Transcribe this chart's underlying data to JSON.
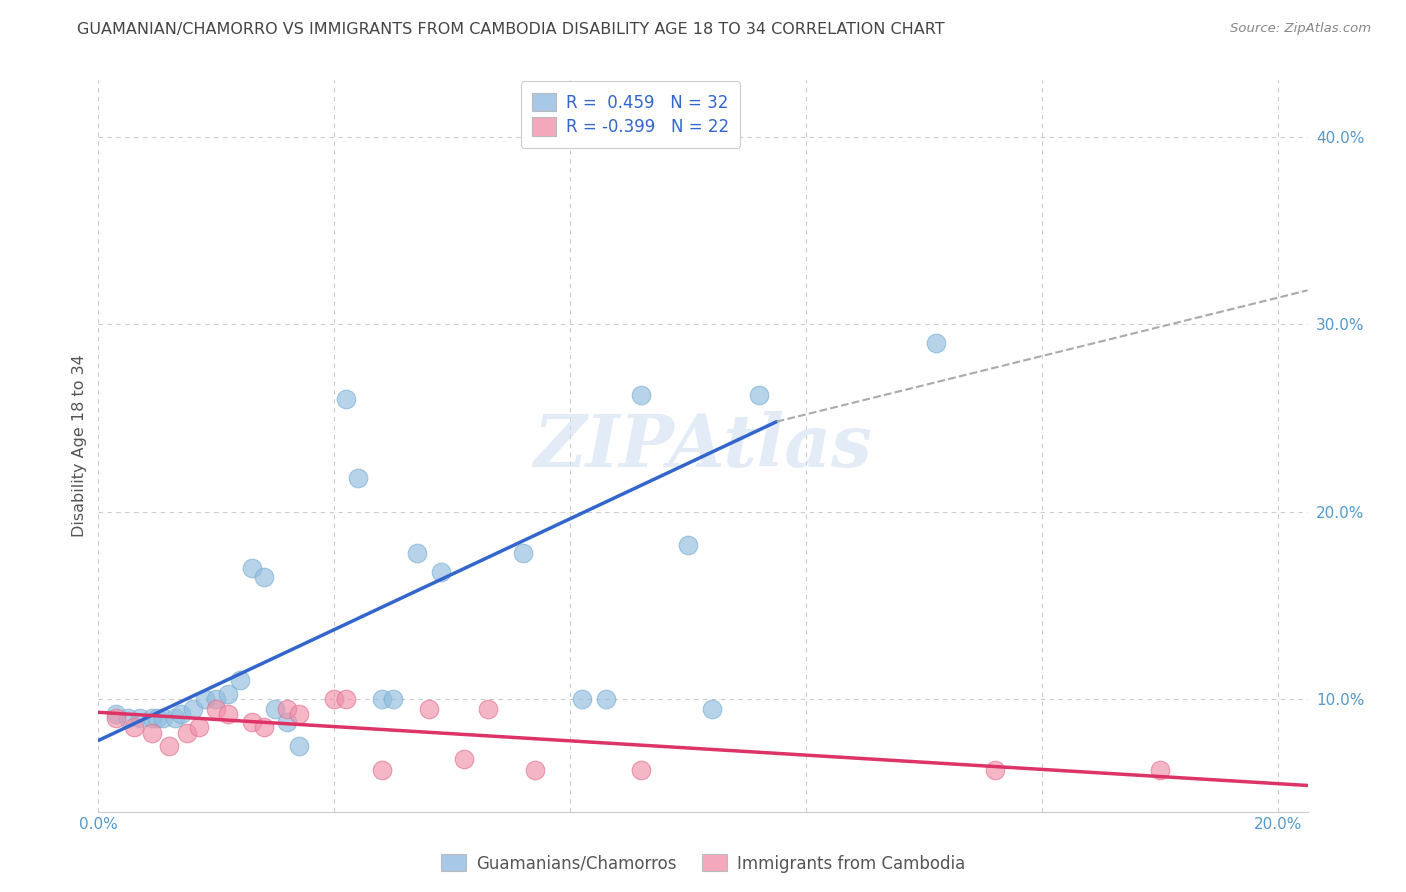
{
  "title": "GUAMANIAN/CHAMORRO VS IMMIGRANTS FROM CAMBODIA DISABILITY AGE 18 TO 34 CORRELATION CHART",
  "source": "Source: ZipAtlas.com",
  "ylabel": "Disability Age 18 to 34",
  "xlim": [
    0.0,
    0.205
  ],
  "ylim": [
    0.04,
    0.43
  ],
  "xticks": [
    0.0,
    0.04,
    0.08,
    0.12,
    0.16,
    0.2
  ],
  "xticklabels": [
    "0.0%",
    "",
    "",
    "",
    "",
    "20.0%"
  ],
  "yticks_right": [
    0.1,
    0.2,
    0.3,
    0.4
  ],
  "yticklabels_right": [
    "10.0%",
    "20.0%",
    "30.0%",
    "40.0%"
  ],
  "legend_top": [
    {
      "label": "R =  0.459   N = 32",
      "color": "#a8c8e8"
    },
    {
      "label": "R = -0.399   N = 22",
      "color": "#f4a8bc"
    }
  ],
  "legend_bottom": [
    {
      "label": "Guamanians/Chamorros",
      "color": "#a8c8e8"
    },
    {
      "label": "Immigrants from Cambodia",
      "color": "#f4a8bc"
    }
  ],
  "blue_scatter": [
    [
      0.003,
      0.092
    ],
    [
      0.005,
      0.09
    ],
    [
      0.007,
      0.09
    ],
    [
      0.009,
      0.09
    ],
    [
      0.01,
      0.09
    ],
    [
      0.011,
      0.09
    ],
    [
      0.013,
      0.09
    ],
    [
      0.014,
      0.092
    ],
    [
      0.016,
      0.095
    ],
    [
      0.018,
      0.1
    ],
    [
      0.02,
      0.1
    ],
    [
      0.022,
      0.103
    ],
    [
      0.024,
      0.11
    ],
    [
      0.026,
      0.17
    ],
    [
      0.028,
      0.165
    ],
    [
      0.03,
      0.095
    ],
    [
      0.032,
      0.088
    ],
    [
      0.034,
      0.075
    ],
    [
      0.042,
      0.26
    ],
    [
      0.044,
      0.218
    ],
    [
      0.048,
      0.1
    ],
    [
      0.05,
      0.1
    ],
    [
      0.054,
      0.178
    ],
    [
      0.058,
      0.168
    ],
    [
      0.072,
      0.178
    ],
    [
      0.082,
      0.1
    ],
    [
      0.086,
      0.1
    ],
    [
      0.092,
      0.262
    ],
    [
      0.1,
      0.182
    ],
    [
      0.104,
      0.095
    ],
    [
      0.112,
      0.262
    ],
    [
      0.142,
      0.29
    ]
  ],
  "pink_scatter": [
    [
      0.003,
      0.09
    ],
    [
      0.006,
      0.085
    ],
    [
      0.009,
      0.082
    ],
    [
      0.012,
      0.075
    ],
    [
      0.015,
      0.082
    ],
    [
      0.017,
      0.085
    ],
    [
      0.02,
      0.095
    ],
    [
      0.022,
      0.092
    ],
    [
      0.026,
      0.088
    ],
    [
      0.028,
      0.085
    ],
    [
      0.032,
      0.095
    ],
    [
      0.034,
      0.092
    ],
    [
      0.04,
      0.1
    ],
    [
      0.042,
      0.1
    ],
    [
      0.048,
      0.062
    ],
    [
      0.056,
      0.095
    ],
    [
      0.062,
      0.068
    ],
    [
      0.066,
      0.095
    ],
    [
      0.074,
      0.062
    ],
    [
      0.092,
      0.062
    ],
    [
      0.152,
      0.062
    ],
    [
      0.18,
      0.062
    ]
  ],
  "blue_line_solid": [
    [
      0.0,
      0.078
    ],
    [
      0.115,
      0.248
    ]
  ],
  "blue_line_dash": [
    [
      0.115,
      0.248
    ],
    [
      0.205,
      0.318
    ]
  ],
  "pink_line": [
    [
      0.0,
      0.093
    ],
    [
      0.205,
      0.054
    ]
  ],
  "watermark_text": "ZIPAtlas",
  "background_color": "#ffffff",
  "grid_color": "#cccccc",
  "blue_dot_color": "#90bce0",
  "pink_dot_color": "#f090a8",
  "blue_line_color": "#3366cc",
  "pink_line_color": "#dd3366",
  "dash_color": "#aaaaaa",
  "title_color": "#444444",
  "tick_color": "#5599cc",
  "ylabel_color": "#555555"
}
